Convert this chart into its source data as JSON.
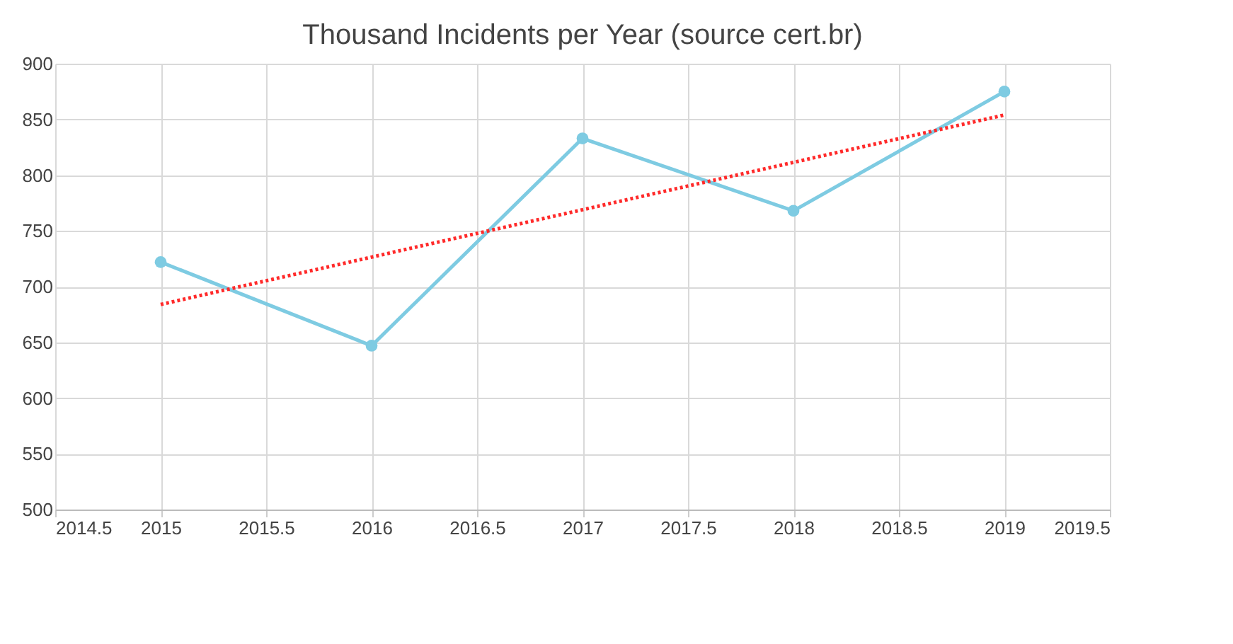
{
  "chart_data": {
    "type": "line",
    "title": "Thousand Incidents per Year (source cert.br)",
    "x": [
      2015,
      2016,
      2017,
      2018,
      2019
    ],
    "series": [
      {
        "color": "#7ecbe2",
        "values": [
          722,
          647,
          833,
          768,
          875
        ],
        "marker": "circle",
        "line_style": "solid"
      },
      {
        "type": "line",
        "x": [
          2015,
          2019
        ],
        "color": "#ff2a2a",
        "values": [
          684,
          854
        ],
        "marker": "none",
        "line_style": "dotted"
      }
    ],
    "xlim": [
      2014.5,
      2019.5
    ],
    "xticks": [
      2014.5,
      2015,
      2015.5,
      2016,
      2016.5,
      2017,
      2017.5,
      2018,
      2018.5,
      2019,
      2019.5
    ],
    "ylim": [
      500,
      900
    ],
    "yticks": [
      500,
      550,
      600,
      650,
      700,
      750,
      800,
      850,
      900
    ],
    "grid": true
  }
}
